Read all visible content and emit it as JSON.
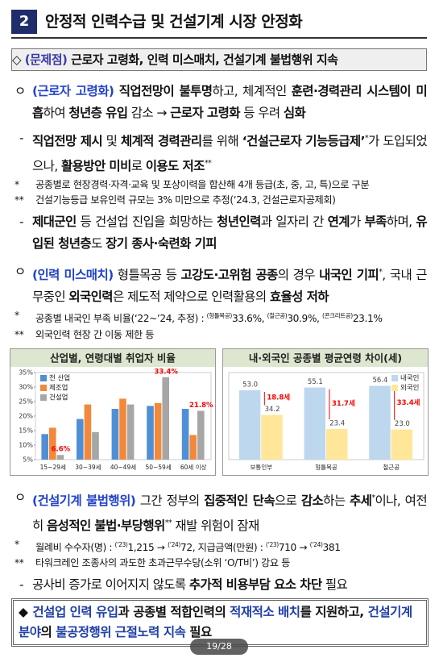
{
  "header": {
    "number": "2",
    "title": "안정적 인력수급 및 건설기계 시장 안정화"
  },
  "banner": {
    "marker": "◇",
    "label": "(문제점)",
    "text": "근로자 고령화, 인력 미스매치, 건설기계 불법행위 지속"
  },
  "body_top": [
    {
      "bullet": "ㅇ",
      "runs": [
        {
          "text": "(근로자 고령화)",
          "bold": true,
          "color": "#2343c8"
        },
        {
          "text": " 직업전망이 불투명",
          "bold": true
        },
        {
          "text": "하고, 체계적인 "
        },
        {
          "text": "훈련·경력관리 시스템이 미흡",
          "bold": true
        },
        {
          "text": "하여 "
        },
        {
          "text": "청년층 유입",
          "bold": true
        },
        {
          "text": " 감소 → "
        },
        {
          "text": "근로자 고령화",
          "bold": true
        },
        {
          "text": " 등 우려 "
        },
        {
          "text": "심화",
          "bold": true
        }
      ],
      "items": [
        {
          "bullet": "-",
          "runs": [
            {
              "text": "직업전망 제시",
              "bold": true
            },
            {
              "text": " 및 "
            },
            {
              "text": "체계적 경력관리",
              "bold": true
            },
            {
              "text": "를 위해 "
            },
            {
              "text": "‘건설근로자 기능등급제’",
              "bold": true
            },
            {
              "text": "*",
              "sup": true
            },
            {
              "text": "가 도입되었으나, "
            },
            {
              "text": "활용방안 미비",
              "bold": true
            },
            {
              "text": "로 "
            },
            {
              "text": "이용도 저조",
              "bold": true
            },
            {
              "text": "**",
              "sup": true
            }
          ],
          "notes": [
            {
              "bullet": "*",
              "runs": [
                {
                  "text": "공종별로 현장경력·자격·교육 및 포상이력을 합산해 4개 등급(초, 중, 고, 특)으로 구분"
                }
              ]
            },
            {
              "bullet": "**",
              "runs": [
                {
                  "text": "건설기능등급 보유인력 규모는 3% 미만으로 추정(‘24.3, 건설근로자공제회)"
                }
              ]
            }
          ]
        },
        {
          "bullet": "-",
          "runs": [
            {
              "text": "제대군인",
              "bold": true
            },
            {
              "text": " 등 건설업 진입을 희망하는 "
            },
            {
              "text": "청년인력",
              "bold": true
            },
            {
              "text": "과 일자리 간 "
            },
            {
              "text": "연계",
              "bold": true
            },
            {
              "text": "가 "
            },
            {
              "text": "부족",
              "bold": true
            },
            {
              "text": "하며, "
            },
            {
              "text": "유입된 청년층",
              "bold": true
            },
            {
              "text": "도 "
            },
            {
              "text": "장기 종사·숙련화 기피",
              "bold": true
            }
          ]
        }
      ]
    },
    {
      "bullet": "ㅇ",
      "runs": [
        {
          "text": "(인력 미스매치)",
          "bold": true,
          "color": "#2343c8"
        },
        {
          "text": " 형틀목공 등 "
        },
        {
          "text": "고강도·고위험 공종",
          "bold": true
        },
        {
          "text": "의 경우 "
        },
        {
          "text": "내국인 기피",
          "bold": true
        },
        {
          "text": "*",
          "sup": true
        },
        {
          "text": ", 국내 근무중인 "
        },
        {
          "text": "외국인력",
          "bold": true
        },
        {
          "text": "은 제도적 제약으로 인력활용의 "
        },
        {
          "text": "효율성 저하",
          "bold": true
        }
      ],
      "notes": [
        {
          "bullet": "*",
          "runs": [
            {
              "text": "공종별 내국인 부족 비율(‘22~’24, 추정) : "
            },
            {
              "text": "(형틀목공)",
              "sup": true
            },
            {
              "text": "33.6%, "
            },
            {
              "text": "(철근공)",
              "sup": true
            },
            {
              "text": "30.9%, "
            },
            {
              "text": "(콘크리트공)",
              "sup": true
            },
            {
              "text": "23.1%"
            }
          ]
        },
        {
          "bullet": "**",
          "runs": [
            {
              "text": "외국인력 현장 간 이동 제한 등"
            }
          ]
        }
      ]
    }
  ],
  "chart_data": [
    {
      "type": "bar",
      "title": "산업별, 연령대별 취업자 비율",
      "categories": [
        "15~29세",
        "30~39세",
        "40~49세",
        "50~59세",
        "60세 이상"
      ],
      "series": [
        {
          "name": "전 산업",
          "color": "#4f8fd6",
          "values": [
            13.8,
            19,
            22.5,
            23.5,
            22.5
          ]
        },
        {
          "name": "제조업",
          "color": "#f4883a",
          "values": [
            16,
            24,
            26,
            24.5,
            13.5
          ]
        },
        {
          "name": "건설업",
          "color": "#a6a6a6",
          "values": [
            6.6,
            14.5,
            24,
            33.4,
            21.8
          ],
          "value_labels": [
            "6.6%",
            null,
            null,
            "33.4%",
            "21.8%"
          ],
          "label_color": "#ff0000"
        }
      ],
      "ylim": [
        5,
        35
      ],
      "yticks": [
        {
          "value": 5,
          "label": "5%"
        },
        {
          "value": 10,
          "label": "10%"
        },
        {
          "value": 15,
          "label": "15%"
        },
        {
          "value": 20,
          "label": "20%"
        },
        {
          "value": 25,
          "label": "25%"
        },
        {
          "value": 30,
          "label": "30%"
        },
        {
          "value": 35,
          "label": "35%"
        }
      ],
      "legend": "upper left"
    },
    {
      "type": "bar",
      "title": "내·외국인 공종별 평균연령 차이(세)",
      "categories": [
        "보통인부",
        "형틀목공",
        "철근공"
      ],
      "series": [
        {
          "name": "내국인",
          "color": "#bdd7ee",
          "values": [
            53.0,
            55.1,
            56.4
          ],
          "value_labels": [
            "53.0",
            "55.1",
            "56.4"
          ]
        },
        {
          "name": "외국인",
          "color": "#ffe699",
          "values": [
            34.2,
            23.4,
            23.0
          ],
          "value_labels": [
            "34.2",
            "23.4",
            "23.0"
          ]
        }
      ],
      "annotations": [
        "18.8세",
        "31.7세",
        "33.4세"
      ],
      "annotation_color": "#ff0000",
      "legend": "upper right"
    }
  ],
  "body_bottom": [
    {
      "bullet": "ㅇ",
      "runs": [
        {
          "text": "(건설기계 불법행위)",
          "bold": true,
          "color": "#2343c8"
        },
        {
          "text": " 그간 정부의 "
        },
        {
          "text": "집중적인 단속",
          "bold": true
        },
        {
          "text": "으로 "
        },
        {
          "text": "감소",
          "bold": true
        },
        {
          "text": "하는 "
        },
        {
          "text": "추세",
          "bold": true
        },
        {
          "text": "*",
          "sup": true
        },
        {
          "text": "이나, 여전히 "
        },
        {
          "text": "음성적인 불법·부당행위",
          "bold": true
        },
        {
          "text": "**",
          "sup": true
        },
        {
          "text": " 재발 위험이 잠재"
        }
      ],
      "notes": [
        {
          "bullet": "*",
          "runs": [
            {
              "text": "월례비 수수자(명) : "
            },
            {
              "text": "(‘23)",
              "sup": true
            },
            {
              "text": "1,215 → "
            },
            {
              "text": "(‘24)",
              "sup": true
            },
            {
              "text": "72, 지급금액(만원) : "
            },
            {
              "text": "(‘23)",
              "sup": true
            },
            {
              "text": "710 → "
            },
            {
              "text": "(‘24)",
              "sup": true
            },
            {
              "text": "381"
            }
          ]
        },
        {
          "bullet": "**",
          "runs": [
            {
              "text": "타워크레인 조종사의 과도한 초과근무수당(소위 ‘O/T비’) 강요 등"
            }
          ]
        }
      ],
      "items": [
        {
          "bullet": "-",
          "runs": [
            {
              "text": "공사비 증가로 이어지지 않도록 "
            },
            {
              "text": "추가적 비용부담 요소 차단",
              "bold": true
            },
            {
              "text": " 필요"
            }
          ]
        }
      ]
    }
  ],
  "conclusion": {
    "marker": "◆",
    "runs": [
      {
        "text": "건설업 인력 유입",
        "bold": true,
        "color": "#1f3fa8"
      },
      {
        "text": "과 ",
        "bold": true
      },
      {
        "text": "공종별 적합인력",
        "bold": true
      },
      {
        "text": "의 ",
        "bold": true
      },
      {
        "text": "적재적소 배치",
        "bold": true,
        "color": "#1f3fa8"
      },
      {
        "text": "를 지원하고, ",
        "bold": true
      },
      {
        "text": "건설기계 분야",
        "bold": true,
        "color": "#1f3fa8"
      },
      {
        "text": "의 ",
        "bold": true
      },
      {
        "text": "불공정행위 근절노력 지속",
        "bold": true,
        "color": "#1f3fa8"
      },
      {
        "text": " 필요",
        "bold": true
      }
    ]
  },
  "page_indicator": "19/28"
}
